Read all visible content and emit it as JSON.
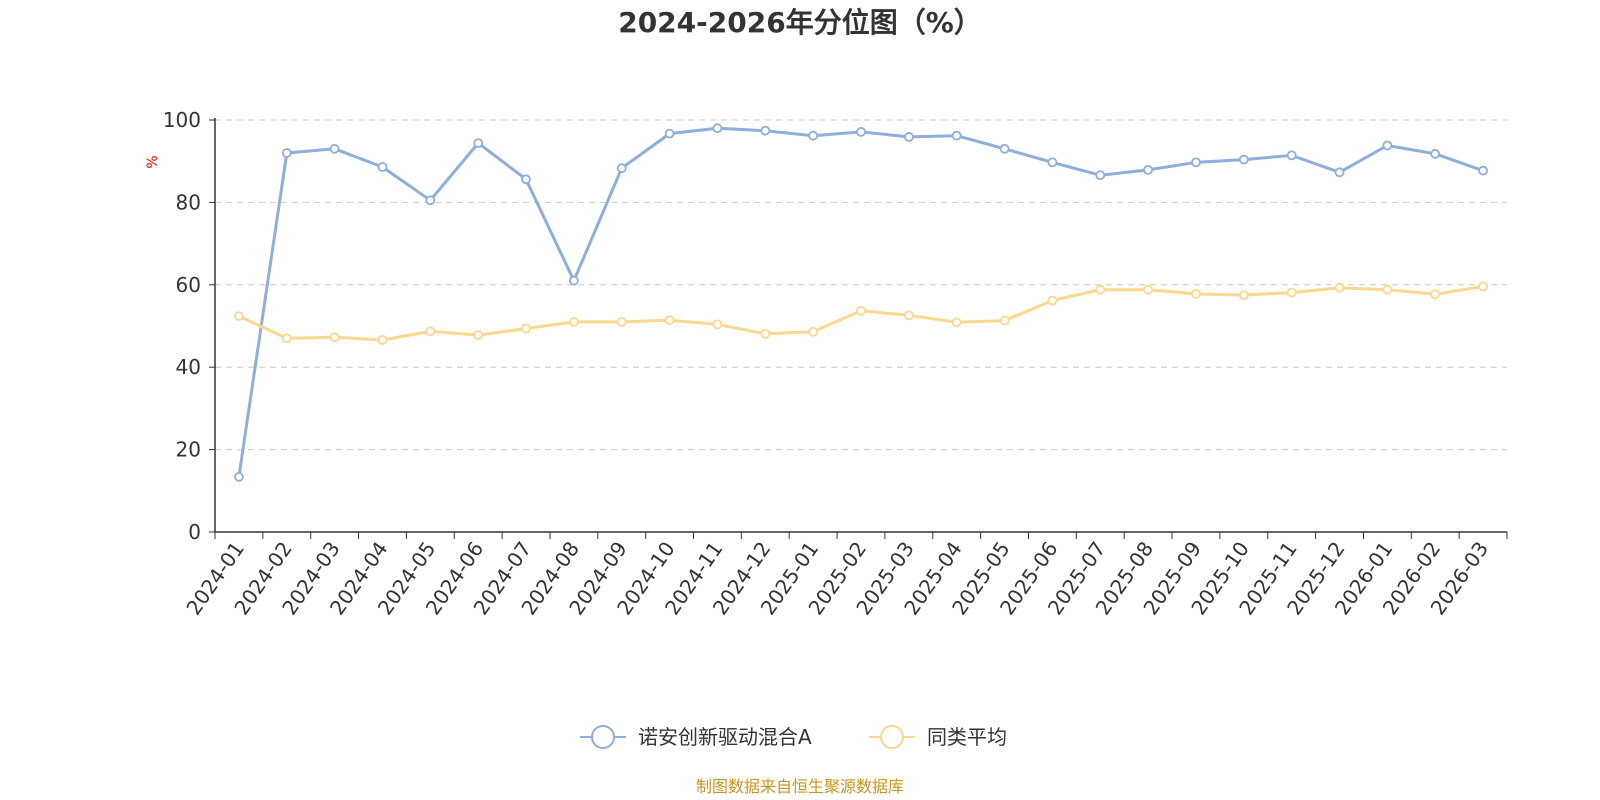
{
  "chart_data": {
    "type": "line",
    "title": "2024-2026年分位图（%）",
    "xlabel": "",
    "ylabel": "%",
    "ylim": [
      0,
      100
    ],
    "yticks": [
      0,
      20,
      40,
      60,
      80,
      100
    ],
    "grid": true,
    "legend_position": "bottom-center",
    "categories": [
      "2024-01",
      "2024-02",
      "2024-03",
      "2024-04",
      "2024-05",
      "2024-06",
      "2024-07",
      "2024-08",
      "2024-09",
      "2024-10",
      "2024-11",
      "2024-12",
      "2025-01",
      "2025-02",
      "2025-03",
      "2025-04",
      "2025-05",
      "2025-06",
      "2025-07",
      "2025-08",
      "2025-09",
      "2025-10",
      "2025-11",
      "2025-12",
      "2026-01",
      "2026-02",
      "2026-03"
    ],
    "series": [
      {
        "name": "诺安创新驱动混合A",
        "color": "#8eaedb",
        "values": [
          13.4,
          92.0,
          93.0,
          88.6,
          80.5,
          94.4,
          85.6,
          61.0,
          88.3,
          96.7,
          98.0,
          97.4,
          96.2,
          97.1,
          95.9,
          96.2,
          93.0,
          89.7,
          86.6,
          87.9,
          89.7,
          90.4,
          91.4,
          87.3,
          93.8,
          91.8,
          87.7
        ]
      },
      {
        "name": "同类平均",
        "color": "#fcd88e",
        "values": [
          52.4,
          47.0,
          47.3,
          46.6,
          48.7,
          47.8,
          49.4,
          51.0,
          51.0,
          51.4,
          50.4,
          48.1,
          48.6,
          53.7,
          52.6,
          50.9,
          51.3,
          56.2,
          58.8,
          58.8,
          57.8,
          57.5,
          58.1,
          59.3,
          58.8,
          57.7,
          59.6
        ]
      }
    ]
  },
  "footer": {
    "source": "制图数据来自恒生聚源数据库"
  },
  "colors": {
    "axis": "#333333",
    "grid": "#cccccc",
    "ylabel": "#ff0000",
    "source": "#c8961e"
  }
}
